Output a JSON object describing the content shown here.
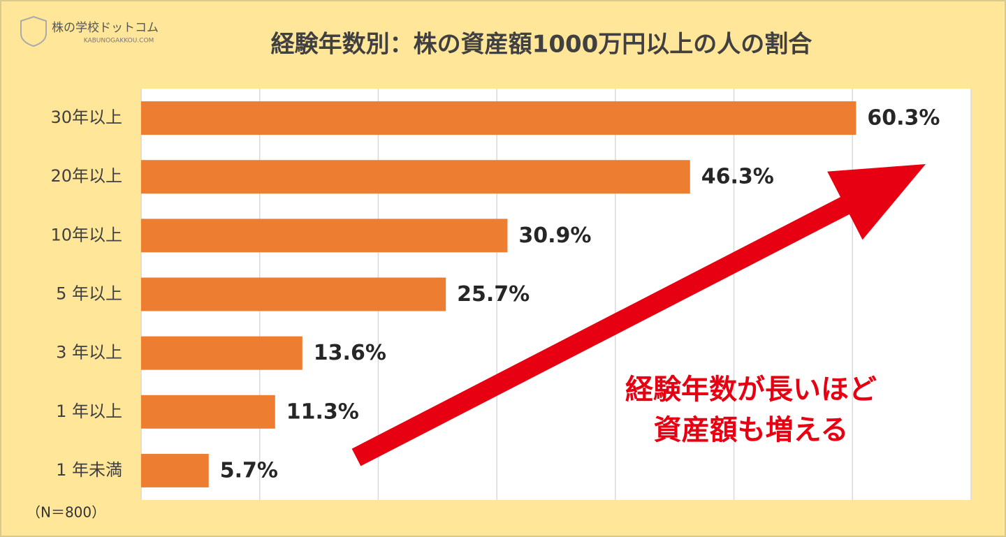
{
  "logo": {
    "name": "株の学校ドットコム",
    "url": "KABUNOGAKKOU.COM"
  },
  "chart_data": {
    "type": "barh",
    "title": "経験年数別：株の資産額1000万円以上の人の割合",
    "categories": [
      "30年以上",
      "20年以上",
      "10年以上",
      "5 年以上",
      "3 年以上",
      "1 年以上",
      "1 年未満"
    ],
    "values": [
      60.3,
      46.3,
      30.9,
      25.7,
      13.6,
      11.3,
      5.7
    ],
    "value_labels": [
      "60.3%",
      "46.3%",
      "30.9%",
      "25.7%",
      "13.6%",
      "11.3%",
      "5.7%"
    ],
    "color": "#ed7d31",
    "xlim": [
      0,
      70
    ],
    "xticks": [
      0,
      10,
      20,
      30,
      40,
      50,
      60,
      70
    ],
    "grid": true,
    "annotation": [
      "経験年数が長いほど",
      "資産額も増える"
    ],
    "note": "（N＝800）"
  }
}
